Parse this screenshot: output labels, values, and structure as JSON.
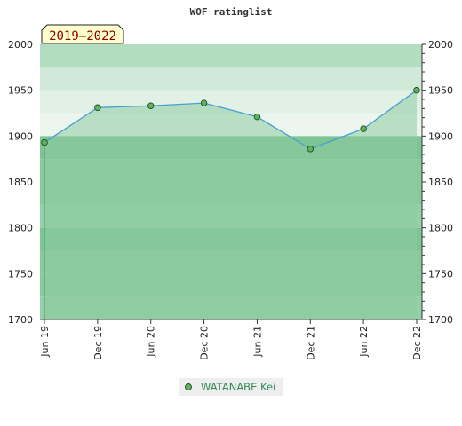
{
  "chart_data": {
    "type": "line",
    "title": "WOF ratinglist",
    "period_label": "2019–2022",
    "categories": [
      "Jun 19",
      "Dec 19",
      "Jun 20",
      "Dec 20",
      "Jun 21",
      "Dec 21",
      "Jun 22",
      "Dec 22"
    ],
    "series": [
      {
        "name": "WATANABE Kei",
        "values": [
          1893,
          1931,
          1933,
          1936,
          1921,
          1886,
          1908,
          1950
        ]
      }
    ],
    "ylim": [
      1700,
      2000
    ],
    "y_ticks": [
      1700,
      1750,
      1800,
      1850,
      1900,
      1950,
      2000
    ],
    "y_axis_sides": "left and right",
    "grid": false,
    "legend_position": "bottom-center",
    "colors": {
      "line": "#4a9fd0",
      "marker_fill": "#5fb35f",
      "marker_stroke": "#1e4d1e",
      "legend_text": "#2e8b57",
      "legend_bg": "#eeeeee",
      "period_badge_bg": "#ffffcc",
      "period_text": "#8b0000",
      "fill_under_line": "#8ecba0"
    }
  }
}
